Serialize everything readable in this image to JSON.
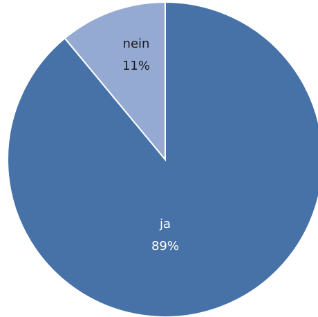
{
  "chart_data": {
    "type": "pie",
    "categories": [
      "ja",
      "nein"
    ],
    "values": [
      89,
      11
    ],
    "value_labels": [
      "89%",
      "11%"
    ],
    "colors": [
      "#4672a8",
      "#95aad3"
    ]
  }
}
